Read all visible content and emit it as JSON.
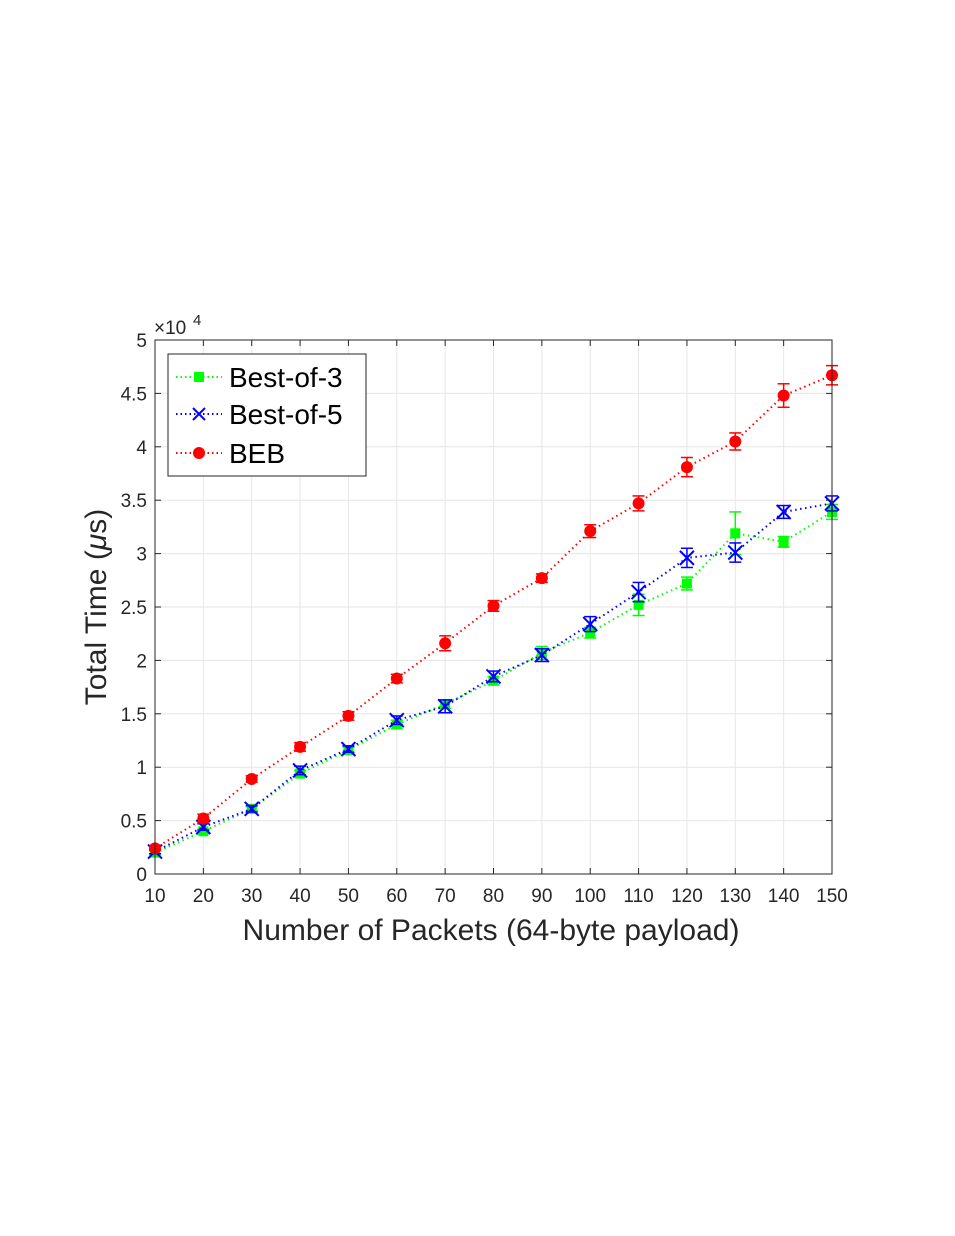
{
  "chart_data": {
    "type": "line",
    "xlabel": "Number of Packets (64-byte payload)",
    "ylabel_main": "Total Time (",
    "ylabel_mu": "μ",
    "ylabel_tail": "s)",
    "y_exponent_base": "×10",
    "y_exponent_power": "4",
    "x": [
      10,
      20,
      30,
      40,
      50,
      60,
      70,
      80,
      90,
      100,
      110,
      120,
      130,
      140,
      150
    ],
    "x_tick_labels": [
      "10",
      "20",
      "30",
      "40",
      "50",
      "60",
      "70",
      "80",
      "90",
      "100",
      "110",
      "120",
      "130",
      "140",
      "150"
    ],
    "y_tick_labels": [
      "0",
      "0.5",
      "1",
      "1.5",
      "2",
      "2.5",
      "3",
      "3.5",
      "4",
      "4.5",
      "5"
    ],
    "xlim": [
      10,
      150
    ],
    "ylim": [
      0,
      5
    ],
    "grid": true,
    "legend_position": "top-left",
    "series": [
      {
        "name": "Best-of-3",
        "color": "#00ff00",
        "marker": "square",
        "line_style": "dotted",
        "values": [
          0.2,
          0.4,
          0.61,
          0.94,
          1.16,
          1.4,
          1.59,
          1.81,
          2.07,
          2.26,
          2.52,
          2.72,
          3.19,
          3.11,
          3.39
        ],
        "errors": [
          0.02,
          0.02,
          0.02,
          0.03,
          0.03,
          0.04,
          0.04,
          0.04,
          0.06,
          0.05,
          0.1,
          0.06,
          0.2,
          0.05,
          0.07
        ]
      },
      {
        "name": "Best-of-5",
        "color": "#0000ff",
        "marker": "x",
        "line_style": "dotted",
        "values": [
          0.21,
          0.44,
          0.61,
          0.97,
          1.17,
          1.44,
          1.57,
          1.85,
          2.05,
          2.34,
          2.64,
          2.96,
          3.01,
          3.39,
          3.47
        ],
        "errors": [
          0.02,
          0.03,
          0.03,
          0.04,
          0.03,
          0.04,
          0.06,
          0.05,
          0.06,
          0.07,
          0.09,
          0.09,
          0.09,
          0.06,
          0.07
        ]
      },
      {
        "name": "BEB",
        "color": "#ff0000",
        "marker": "circle",
        "line_style": "dotted",
        "values": [
          0.24,
          0.52,
          0.89,
          1.19,
          1.48,
          1.83,
          2.16,
          2.51,
          2.77,
          3.21,
          3.47,
          3.81,
          4.05,
          4.48,
          4.67
        ],
        "errors": [
          0.02,
          0.04,
          0.03,
          0.04,
          0.04,
          0.04,
          0.07,
          0.05,
          0.04,
          0.06,
          0.07,
          0.09,
          0.08,
          0.11,
          0.09
        ]
      }
    ]
  }
}
